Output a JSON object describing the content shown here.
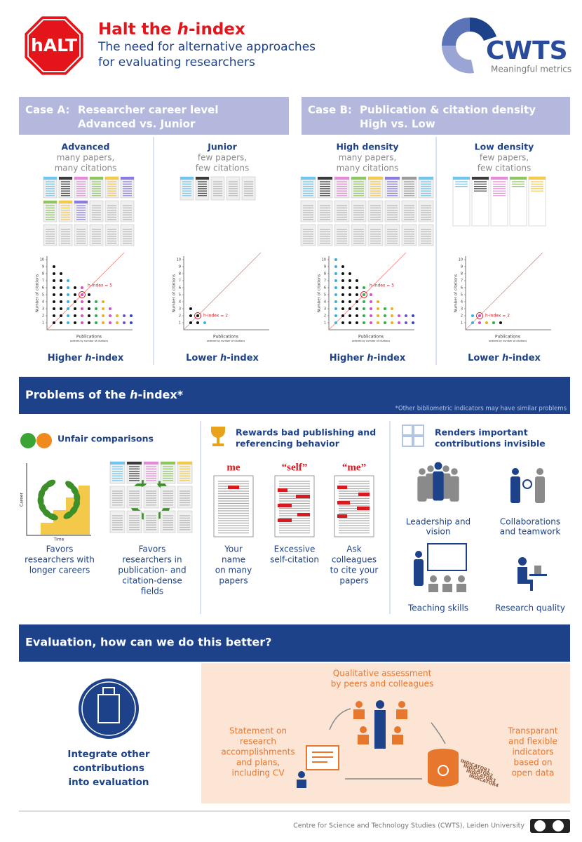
{
  "header": {
    "logo_text": "hALT",
    "title": [
      "Halt the ",
      "h",
      "-index"
    ],
    "subtitle": [
      "The need for alternative approaches",
      "for evaluating researchers"
    ],
    "org": "CWTS",
    "org_tagline": "Meaningful metrics"
  },
  "plot_axes": {
    "y_label": "Number of citations",
    "x_label": "Publications",
    "x_sublabel": "ordered by number of citations",
    "yticks": [
      1,
      2,
      3,
      4,
      5,
      6,
      7,
      8,
      9,
      10
    ]
  },
  "cases": [
    {
      "label": "Case A:",
      "title": [
        "Researcher career level",
        "Advanced vs. Junior"
      ],
      "panels": [
        {
          "name": "Advanced",
          "desc": [
            "many papers,",
            "many citations"
          ],
          "h_index": 5,
          "h_index_label": "h-index = 5",
          "citations": [
            9,
            8,
            7,
            6,
            6,
            5,
            4,
            4,
            3,
            2,
            2,
            2
          ],
          "dot_colors": [
            "#111",
            "#111",
            "#3ab0e2",
            "#111",
            "#d44ec8",
            "#111",
            "#2bb04a",
            "#e8b21c",
            "#d44ec8",
            "#e8b21c",
            "#6a4fd6",
            "#3040d0"
          ],
          "result": [
            "Higher ",
            "h",
            "-index"
          ]
        },
        {
          "name": "Junior",
          "desc": [
            "few papers,",
            "few citations"
          ],
          "h_index": 2,
          "h_index_label": "h-index = 2",
          "citations": [
            3,
            2,
            1
          ],
          "dot_colors": [
            "#111",
            "#111",
            "#3ab0e2"
          ],
          "result": [
            "Lower ",
            "h",
            "-index"
          ]
        }
      ]
    },
    {
      "label": "Case B:",
      "title": [
        "Publication & citation density",
        "High vs. Low"
      ],
      "panels": [
        {
          "name": "High density",
          "desc": [
            "many papers,",
            "many citations"
          ],
          "h_index": 5,
          "h_index_label": "h-index = 5",
          "citations": [
            10,
            9,
            8,
            7,
            6,
            5,
            4,
            3,
            3,
            2,
            2,
            2
          ],
          "dot_colors": [
            "#3ab0e2",
            "#111",
            "#111",
            "#111",
            "#2bb04a",
            "#d44ec8",
            "#e8b21c",
            "#2bb04a",
            "#e8b21c",
            "#d44ec8",
            "#6a4fd6",
            "#3040d0"
          ],
          "result": [
            "Higher ",
            "h",
            "-index"
          ]
        },
        {
          "name": "Low density",
          "desc": [
            "few papers,",
            "few citations"
          ],
          "h_index": 2,
          "h_index_label": "h-index = 2",
          "citations": [
            2,
            2,
            1,
            1,
            1
          ],
          "dot_colors": [
            "#3ab0e2",
            "#d44ec8",
            "#e8b21c",
            "#2bb04a",
            "#111"
          ],
          "result": [
            "Lower ",
            "h",
            "-index"
          ]
        }
      ]
    }
  ],
  "problems": {
    "title": [
      "Problems of the ",
      "h",
      "-index*"
    ],
    "note": "*Other bibliometric indicators may have similar problems",
    "unfair": {
      "title": "Unfair comparisons",
      "chart_y": "Career",
      "chart_x": "Time",
      "captions": [
        [
          "Favors",
          "researchers with",
          "longer careers"
        ],
        [
          "Favors",
          "researchers in",
          "publication- and",
          "citation-dense",
          "fields"
        ]
      ]
    },
    "rewards": {
      "title": [
        "Rewards bad publishing and",
        "referencing behavior"
      ],
      "items": [
        {
          "label": "me",
          "caption": [
            "Your",
            "name",
            "on many",
            "papers"
          ]
        },
        {
          "label": "“self”",
          "caption": [
            "Excessive",
            "self-citation"
          ]
        },
        {
          "label": "“me”",
          "caption": [
            "Ask",
            "colleagues",
            "to cite your",
            "papers"
          ]
        }
      ]
    },
    "invisible": {
      "title": [
        "Renders important",
        "contributions invisible"
      ],
      "items": [
        [
          "Leadership and",
          "vision"
        ],
        [
          "Collaborations",
          "and teamwork"
        ],
        [
          "Teaching skills"
        ],
        [
          "Research quality"
        ]
      ]
    }
  },
  "evaluation": {
    "title": "Evaluation, how can we do this better?",
    "integrate": [
      "Integrate other",
      "contributions",
      "into evaluation"
    ],
    "peer": [
      "Qualitative assessment",
      "by peers and colleagues"
    ],
    "statement": [
      "Statement on",
      "research",
      "accomplishments",
      "and plans,",
      "including CV"
    ],
    "indicators": [
      "Transparant",
      "and flexible",
      "indicators",
      "based on",
      "open data"
    ],
    "indicator_tags": [
      "INDICATOR1",
      "INDICATOR2",
      "INDICATOR3",
      "INDICATOR4"
    ]
  },
  "footer": {
    "credit": "Centre for Science and Technology Studies (CWTS), Leiden University"
  }
}
